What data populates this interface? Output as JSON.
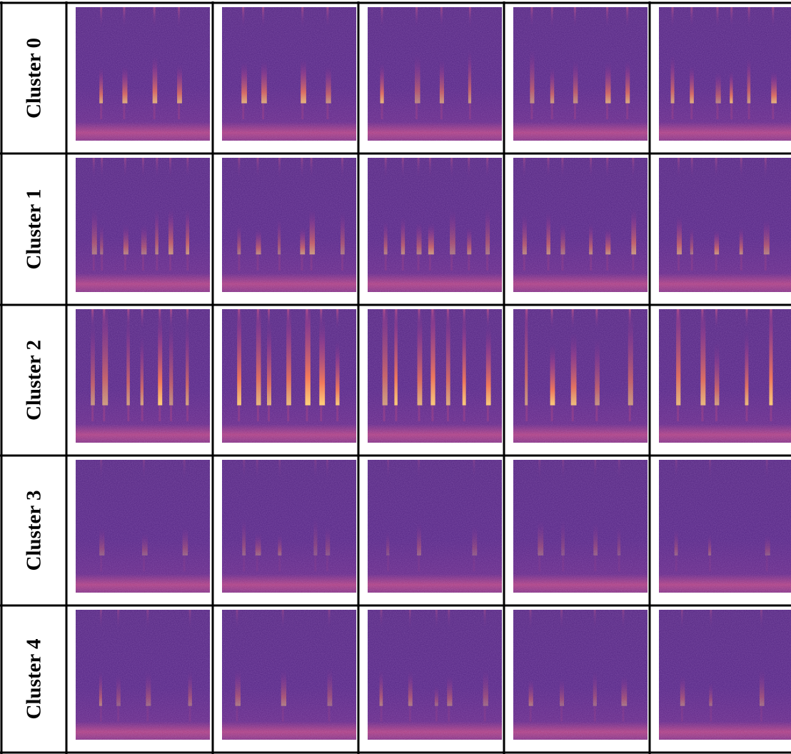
{
  "table": {
    "rows": [
      {
        "label": "Cluster 0"
      },
      {
        "label": "Cluster 1"
      },
      {
        "label": "Cluster 2"
      },
      {
        "label": "Cluster 3"
      },
      {
        "label": "Cluster 4"
      }
    ]
  }
}
